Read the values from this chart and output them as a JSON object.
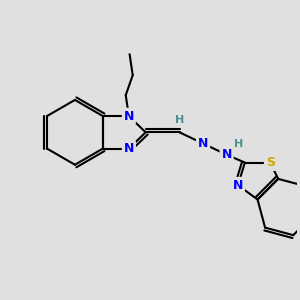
{
  "background_color": "#e0e0e0",
  "N_color": "#0000ff",
  "S_color": "#ccaa00",
  "H_color": "#4a9090",
  "bond_color": "#000000",
  "figsize": [
    3.0,
    3.0
  ],
  "dpi": 100,
  "lw": 1.5,
  "font_size": 9,
  "xlim": [
    0,
    10
  ],
  "ylim": [
    0,
    10
  ]
}
